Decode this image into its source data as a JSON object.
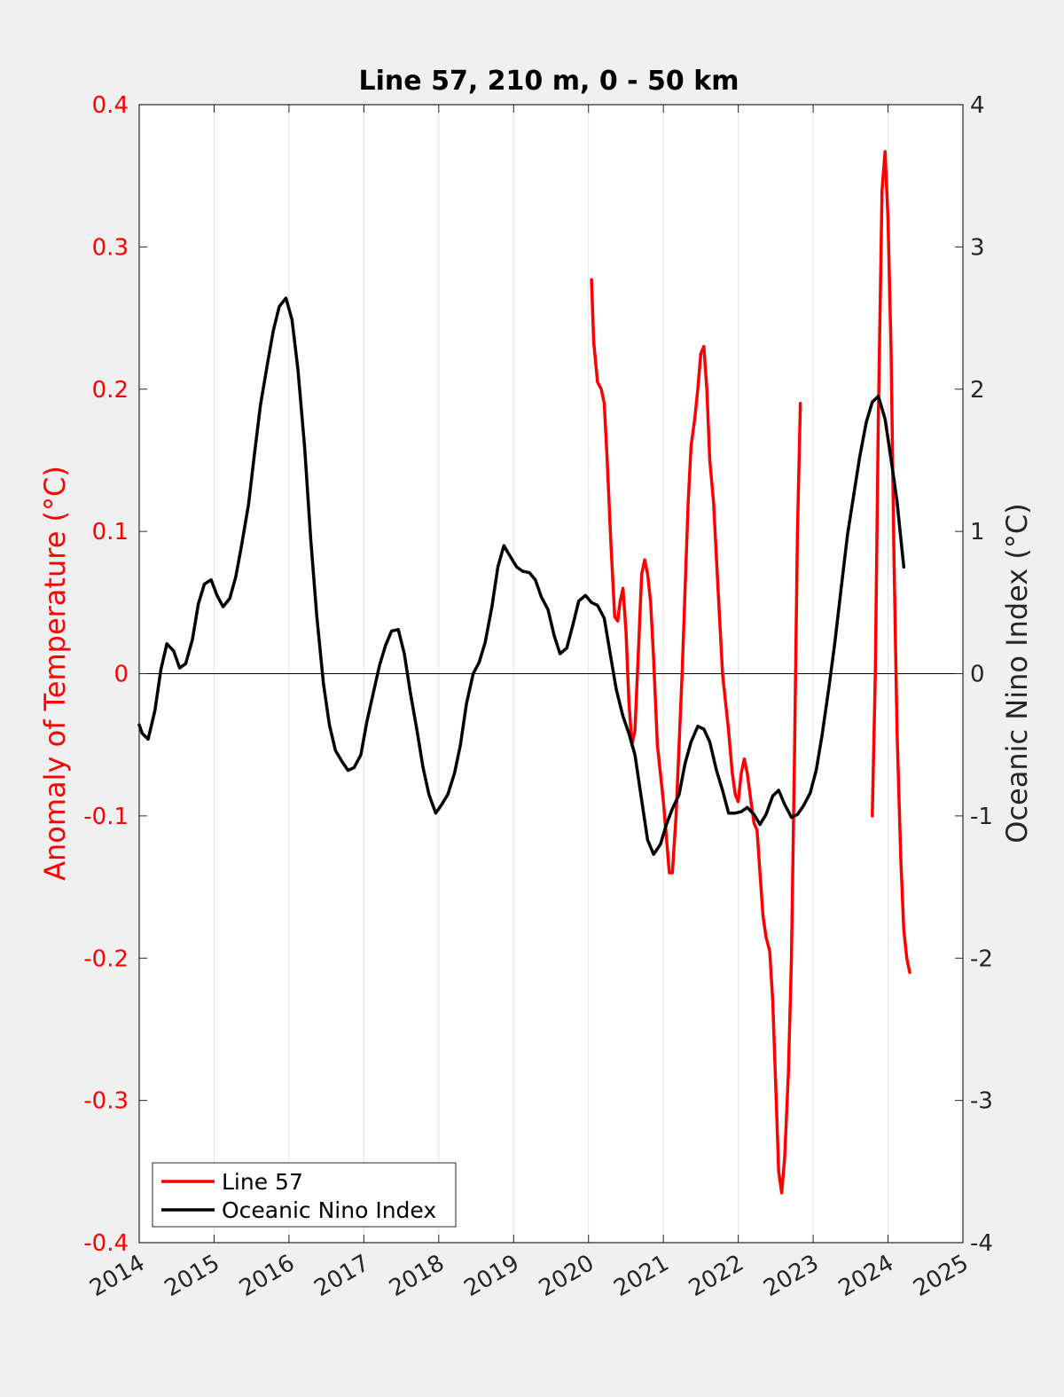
{
  "chart_data": {
    "type": "line",
    "title": "Line 57, 210 m, 0 - 50 km",
    "ylabel": "Anomaly of Temperature (°C)",
    "ylabel_right": "Oceanic Nino Index (°C)",
    "xlim": [
      2014,
      2025
    ],
    "ylim": [
      -0.4,
      0.4
    ],
    "ylim_right": [
      -4,
      4
    ],
    "x_ticks": [
      "2014",
      "2015",
      "2016",
      "2017",
      "2018",
      "2019",
      "2020",
      "2021",
      "2022",
      "2023",
      "2024",
      "2025"
    ],
    "y_ticks_left": [
      "-0.4",
      "-0.3",
      "-0.2",
      "-0.1",
      "0",
      "0.1",
      "0.2",
      "0.3",
      "0.4"
    ],
    "y_ticks_right": [
      "-4",
      "-3",
      "-2",
      "-1",
      "0",
      "1",
      "2",
      "3",
      "4"
    ],
    "grid": "vertical",
    "zero_line": true,
    "legend": {
      "position": "bottom-left",
      "entries": [
        "Line 57",
        "Oceanic Nino Index"
      ]
    },
    "colors": {
      "line57": "#ff0000",
      "oni": "#000000",
      "left_axis": "#ff0000"
    },
    "series": [
      {
        "name": "Line 57",
        "axis": "left",
        "color": "#ff0000",
        "segments": [
          [
            [
              2020.04,
              0.277
            ],
            [
              2020.07,
              0.233
            ],
            [
              2020.12,
              0.205
            ],
            [
              2020.17,
              0.2
            ],
            [
              2020.21,
              0.19
            ],
            [
              2020.25,
              0.15
            ],
            [
              2020.3,
              0.09
            ],
            [
              2020.35,
              0.04
            ],
            [
              2020.39,
              0.037
            ],
            [
              2020.42,
              0.05
            ],
            [
              2020.46,
              0.06
            ],
            [
              2020.5,
              0.03
            ],
            [
              2020.54,
              -0.02
            ],
            [
              2020.58,
              -0.05
            ],
            [
              2020.62,
              -0.04
            ],
            [
              2020.67,
              0.02
            ],
            [
              2020.71,
              0.07
            ],
            [
              2020.75,
              0.08
            ],
            [
              2020.79,
              0.07
            ],
            [
              2020.83,
              0.05
            ],
            [
              2020.87,
              0.01
            ],
            [
              2020.92,
              -0.05
            ],
            [
              2020.96,
              -0.07
            ],
            [
              2021.0,
              -0.09
            ],
            [
              2021.04,
              -0.115
            ],
            [
              2021.08,
              -0.14
            ],
            [
              2021.12,
              -0.14
            ],
            [
              2021.17,
              -0.1
            ],
            [
              2021.21,
              -0.05
            ],
            [
              2021.25,
              0.0
            ],
            [
              2021.29,
              0.06
            ],
            [
              2021.33,
              0.12
            ],
            [
              2021.37,
              0.16
            ],
            [
              2021.42,
              0.18
            ],
            [
              2021.46,
              0.2
            ],
            [
              2021.5,
              0.225
            ],
            [
              2021.54,
              0.23
            ],
            [
              2021.58,
              0.2
            ],
            [
              2021.62,
              0.15
            ],
            [
              2021.67,
              0.12
            ],
            [
              2021.71,
              0.08
            ],
            [
              2021.75,
              0.04
            ],
            [
              2021.79,
              0.0
            ],
            [
              2021.83,
              -0.02
            ],
            [
              2021.87,
              -0.04
            ],
            [
              2021.92,
              -0.07
            ],
            [
              2021.96,
              -0.085
            ],
            [
              2022.0,
              -0.09
            ],
            [
              2022.04,
              -0.07
            ],
            [
              2022.08,
              -0.06
            ],
            [
              2022.12,
              -0.07
            ],
            [
              2022.17,
              -0.09
            ],
            [
              2022.21,
              -0.105
            ],
            [
              2022.25,
              -0.11
            ],
            [
              2022.29,
              -0.14
            ],
            [
              2022.33,
              -0.17
            ],
            [
              2022.37,
              -0.185
            ],
            [
              2022.42,
              -0.195
            ],
            [
              2022.46,
              -0.23
            ],
            [
              2022.5,
              -0.29
            ],
            [
              2022.54,
              -0.35
            ],
            [
              2022.58,
              -0.365
            ],
            [
              2022.62,
              -0.34
            ],
            [
              2022.67,
              -0.28
            ],
            [
              2022.71,
              -0.2
            ],
            [
              2022.75,
              -0.06
            ],
            [
              2022.79,
              0.1
            ],
            [
              2022.83,
              0.19
            ]
          ],
          [
            [
              2023.79,
              -0.1
            ],
            [
              2023.83,
              0.0
            ],
            [
              2023.87,
              0.18
            ],
            [
              2023.92,
              0.34
            ],
            [
              2023.96,
              0.367
            ],
            [
              2024.0,
              0.32
            ],
            [
              2024.04,
              0.23
            ],
            [
              2024.08,
              0.08
            ],
            [
              2024.12,
              -0.04
            ],
            [
              2024.17,
              -0.13
            ],
            [
              2024.21,
              -0.18
            ],
            [
              2024.25,
              -0.2
            ],
            [
              2024.29,
              -0.21
            ]
          ]
        ]
      },
      {
        "name": "Oceanic Nino Index",
        "axis": "right",
        "color": "#000000",
        "points": [
          [
            2014.0,
            -0.36
          ],
          [
            2014.04,
            -0.42
          ],
          [
            2014.12,
            -0.46
          ],
          [
            2014.21,
            -0.26
          ],
          [
            2014.29,
            0.03
          ],
          [
            2014.37,
            0.21
          ],
          [
            2014.46,
            0.16
          ],
          [
            2014.54,
            0.04
          ],
          [
            2014.62,
            0.07
          ],
          [
            2014.71,
            0.24
          ],
          [
            2014.79,
            0.49
          ],
          [
            2014.87,
            0.63
          ],
          [
            2014.96,
            0.66
          ],
          [
            2015.04,
            0.55
          ],
          [
            2015.12,
            0.47
          ],
          [
            2015.21,
            0.53
          ],
          [
            2015.29,
            0.68
          ],
          [
            2015.37,
            0.91
          ],
          [
            2015.46,
            1.19
          ],
          [
            2015.54,
            1.55
          ],
          [
            2015.62,
            1.89
          ],
          [
            2015.71,
            2.17
          ],
          [
            2015.79,
            2.41
          ],
          [
            2015.87,
            2.58
          ],
          [
            2015.96,
            2.64
          ],
          [
            2016.04,
            2.49
          ],
          [
            2016.12,
            2.14
          ],
          [
            2016.21,
            1.59
          ],
          [
            2016.29,
            0.95
          ],
          [
            2016.37,
            0.41
          ],
          [
            2016.46,
            -0.07
          ],
          [
            2016.54,
            -0.36
          ],
          [
            2016.62,
            -0.54
          ],
          [
            2016.71,
            -0.62
          ],
          [
            2016.79,
            -0.68
          ],
          [
            2016.87,
            -0.66
          ],
          [
            2016.96,
            -0.57
          ],
          [
            2017.04,
            -0.34
          ],
          [
            2017.12,
            -0.15
          ],
          [
            2017.21,
            0.06
          ],
          [
            2017.29,
            0.2
          ],
          [
            2017.37,
            0.3
          ],
          [
            2017.46,
            0.31
          ],
          [
            2017.54,
            0.14
          ],
          [
            2017.62,
            -0.13
          ],
          [
            2017.71,
            -0.4
          ],
          [
            2017.79,
            -0.66
          ],
          [
            2017.87,
            -0.85
          ],
          [
            2017.96,
            -0.98
          ],
          [
            2018.04,
            -0.92
          ],
          [
            2018.12,
            -0.85
          ],
          [
            2018.21,
            -0.7
          ],
          [
            2018.29,
            -0.5
          ],
          [
            2018.37,
            -0.21
          ],
          [
            2018.46,
            0.0
          ],
          [
            2018.54,
            0.08
          ],
          [
            2018.62,
            0.22
          ],
          [
            2018.71,
            0.47
          ],
          [
            2018.79,
            0.75
          ],
          [
            2018.87,
            0.9
          ],
          [
            2018.96,
            0.82
          ],
          [
            2019.04,
            0.75
          ],
          [
            2019.12,
            0.72
          ],
          [
            2019.21,
            0.71
          ],
          [
            2019.29,
            0.66
          ],
          [
            2019.37,
            0.54
          ],
          [
            2019.46,
            0.45
          ],
          [
            2019.54,
            0.27
          ],
          [
            2019.62,
            0.14
          ],
          [
            2019.71,
            0.18
          ],
          [
            2019.79,
            0.34
          ],
          [
            2019.87,
            0.51
          ],
          [
            2019.96,
            0.55
          ],
          [
            2020.04,
            0.5
          ],
          [
            2020.12,
            0.48
          ],
          [
            2020.21,
            0.39
          ],
          [
            2020.29,
            0.14
          ],
          [
            2020.37,
            -0.11
          ],
          [
            2020.46,
            -0.3
          ],
          [
            2020.54,
            -0.42
          ],
          [
            2020.62,
            -0.57
          ],
          [
            2020.71,
            -0.89
          ],
          [
            2020.79,
            -1.17
          ],
          [
            2020.87,
            -1.27
          ],
          [
            2020.96,
            -1.2
          ],
          [
            2021.04,
            -1.06
          ],
          [
            2021.12,
            -0.95
          ],
          [
            2021.21,
            -0.85
          ],
          [
            2021.29,
            -0.63
          ],
          [
            2021.37,
            -0.48
          ],
          [
            2021.46,
            -0.37
          ],
          [
            2021.54,
            -0.39
          ],
          [
            2021.62,
            -0.48
          ],
          [
            2021.71,
            -0.68
          ],
          [
            2021.79,
            -0.82
          ],
          [
            2021.87,
            -0.98
          ],
          [
            2021.96,
            -0.98
          ],
          [
            2022.04,
            -0.97
          ],
          [
            2022.12,
            -0.94
          ],
          [
            2022.21,
            -0.99
          ],
          [
            2022.29,
            -1.06
          ],
          [
            2022.37,
            -0.99
          ],
          [
            2022.46,
            -0.86
          ],
          [
            2022.54,
            -0.82
          ],
          [
            2022.62,
            -0.92
          ],
          [
            2022.71,
            -1.01
          ],
          [
            2022.79,
            -0.99
          ],
          [
            2022.87,
            -0.93
          ],
          [
            2022.96,
            -0.84
          ],
          [
            2023.04,
            -0.68
          ],
          [
            2023.12,
            -0.43
          ],
          [
            2023.21,
            -0.1
          ],
          [
            2023.29,
            0.22
          ],
          [
            2023.37,
            0.58
          ],
          [
            2023.46,
            0.98
          ],
          [
            2023.54,
            1.25
          ],
          [
            2023.62,
            1.52
          ],
          [
            2023.71,
            1.77
          ],
          [
            2023.79,
            1.91
          ],
          [
            2023.87,
            1.95
          ],
          [
            2023.96,
            1.79
          ],
          [
            2024.04,
            1.51
          ],
          [
            2024.12,
            1.21
          ],
          [
            2024.21,
            0.75
          ]
        ]
      }
    ]
  }
}
